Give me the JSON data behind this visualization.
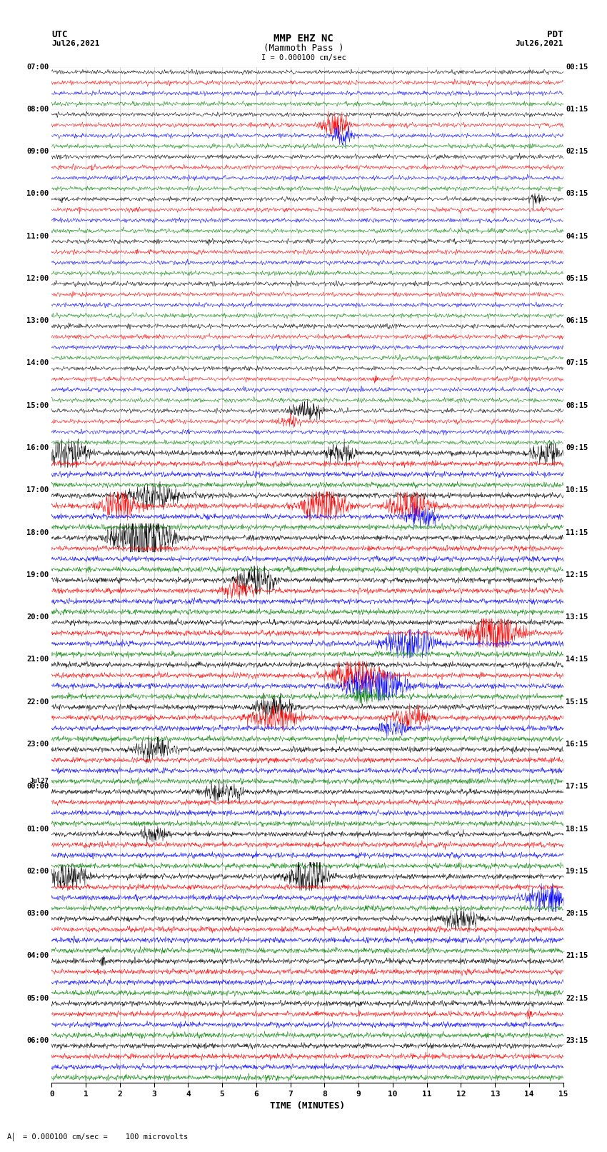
{
  "title_line1": "MMP EHZ NC",
  "title_line2": "(Mammoth Pass )",
  "scale_text": "I = 0.000100 cm/sec",
  "left_label": "UTC",
  "left_date": "Jul26,2021",
  "right_label": "PDT",
  "right_date": "Jul26,2021",
  "xlabel": "TIME (MINUTES)",
  "bottom_note": "= 0.000100 cm/sec =    100 microvolts",
  "utc_times": [
    "07:00",
    "08:00",
    "09:00",
    "10:00",
    "11:00",
    "12:00",
    "13:00",
    "14:00",
    "15:00",
    "16:00",
    "17:00",
    "18:00",
    "19:00",
    "20:00",
    "21:00",
    "22:00",
    "23:00",
    "00:00",
    "01:00",
    "02:00",
    "03:00",
    "04:00",
    "05:00",
    "06:00"
  ],
  "pdt_times": [
    "00:15",
    "01:15",
    "02:15",
    "03:15",
    "04:15",
    "05:15",
    "06:15",
    "07:15",
    "08:15",
    "09:15",
    "10:15",
    "11:15",
    "12:15",
    "13:15",
    "14:15",
    "15:15",
    "16:15",
    "17:15",
    "18:15",
    "19:15",
    "20:15",
    "21:15",
    "22:15",
    "23:15"
  ],
  "n_rows": 24,
  "traces_per_row": 4,
  "trace_colors": [
    "black",
    "red",
    "blue",
    "green"
  ],
  "background_color": "white",
  "x_min": 0,
  "x_max": 15,
  "jul27_row": 17
}
